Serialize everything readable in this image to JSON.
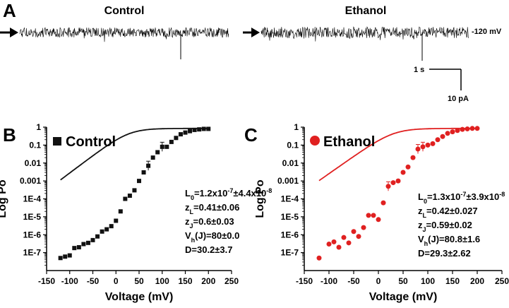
{
  "panel_a": {
    "letter": "A",
    "control_title": "Control",
    "ethanol_title": "Ethanol",
    "voltage_label": "-120 mV",
    "scale_time": "1 s",
    "scale_current": "10 pA"
  },
  "chart_data": [
    {
      "type": "scatter",
      "panel": "B",
      "legend": "Control",
      "xlabel": "Voltage (mV)",
      "ylabel": "Log Po",
      "xlim": [
        -150,
        250
      ],
      "xticks": [
        -150,
        -100,
        -50,
        0,
        50,
        100,
        150,
        200,
        250
      ],
      "yscale": "log",
      "ylim": [
        1e-08,
        1
      ],
      "ytick_values": [
        1e-07,
        1e-06,
        1e-05,
        0.0001,
        0.001,
        0.01,
        0.1,
        1
      ],
      "ytick_labels": [
        "1E-7",
        "1E-6",
        "1E-5",
        "1E-4",
        "0.001",
        "0.01",
        "0.1",
        "1"
      ],
      "color": "#111111",
      "marker": "square",
      "x": [
        -120,
        -110,
        -100,
        -90,
        -80,
        -70,
        -60,
        -50,
        -40,
        -30,
        -20,
        -10,
        0,
        10,
        20,
        30,
        40,
        50,
        60,
        70,
        80,
        90,
        100,
        110,
        120,
        130,
        140,
        150,
        160,
        170,
        180,
        190,
        200
      ],
      "y": [
        5e-08,
        6e-08,
        7e-08,
        1.8e-07,
        2e-07,
        3e-07,
        3.5e-07,
        5e-07,
        8e-07,
        1.5e-06,
        2e-06,
        3e-06,
        6e-06,
        2e-05,
        0.0001,
        0.00015,
        0.0003,
        0.001,
        0.003,
        0.007,
        0.02,
        0.04,
        0.08,
        0.08,
        0.15,
        0.25,
        0.4,
        0.5,
        0.6,
        0.7,
        0.75,
        0.8,
        0.8
      ],
      "error_bars_at_x": [
        70,
        100
      ],
      "fit_label": "fit",
      "params": [
        {
          "sym": "L",
          "sub": "0",
          "text": "=1.2x10",
          "sup": "-7",
          "rest": "±4.4x10",
          "sup2": "-8"
        },
        {
          "sym": "z",
          "sub": "L",
          "text": "=0.41±0.06"
        },
        {
          "sym": "z",
          "sub": "J",
          "text": "=0.6±0.03"
        },
        {
          "sym": "V",
          "sub": "h",
          "text": "(J)=80±0.0"
        },
        {
          "sym": "D=30.2±3.7",
          "sub": "",
          "text": ""
        }
      ]
    },
    {
      "type": "scatter",
      "panel": "C",
      "legend": "Ethanol",
      "xlabel": "Voltage (mV)",
      "ylabel": "Log Po",
      "xlim": [
        -150,
        250
      ],
      "xticks": [
        -150,
        -100,
        -50,
        0,
        50,
        100,
        150,
        200,
        250
      ],
      "yscale": "log",
      "ylim": [
        1e-08,
        1
      ],
      "ytick_values": [
        1e-07,
        1e-06,
        1e-05,
        0.0001,
        0.001,
        0.01,
        0.1,
        1
      ],
      "ytick_labels": [
        "1E-7",
        "1E-6",
        "1E-5",
        "1E-4",
        "0.001",
        "0.01",
        "0.1",
        "1"
      ],
      "color": "#e02020",
      "marker": "circle",
      "x": [
        -120,
        -100,
        -90,
        -80,
        -70,
        -60,
        -50,
        -40,
        -30,
        -20,
        -10,
        0,
        10,
        20,
        30,
        40,
        50,
        60,
        70,
        80,
        90,
        100,
        110,
        120,
        130,
        140,
        150,
        160,
        170,
        180,
        190,
        200
      ],
      "y": [
        5e-08,
        3e-07,
        4e-07,
        2e-07,
        7e-07,
        3.5e-07,
        1.5e-06,
        8e-07,
        2.5e-06,
        1.2e-05,
        1.2e-05,
        7e-06,
        6e-05,
        0.0005,
        0.0008,
        0.001,
        0.003,
        0.006,
        0.02,
        0.06,
        0.08,
        0.1,
        0.12,
        0.2,
        0.3,
        0.45,
        0.55,
        0.65,
        0.75,
        0.8,
        0.85,
        0.85
      ],
      "error_bars_at_x": [
        20,
        80,
        90
      ],
      "params": [
        {
          "sym": "L",
          "sub": "0",
          "text": "=1.3x10",
          "sup": "-7",
          "rest": "±3.9x10",
          "sup2": "-8"
        },
        {
          "sym": "z",
          "sub": "L",
          "text": "=0.42±0.027"
        },
        {
          "sym": "z",
          "sub": "J",
          "text": "=0.59±0.02"
        },
        {
          "sym": "V",
          "sub": "h",
          "text": "(J)=80.8±1.6"
        },
        {
          "sym": "D=29.3±2.62",
          "sub": "",
          "text": ""
        }
      ]
    }
  ]
}
